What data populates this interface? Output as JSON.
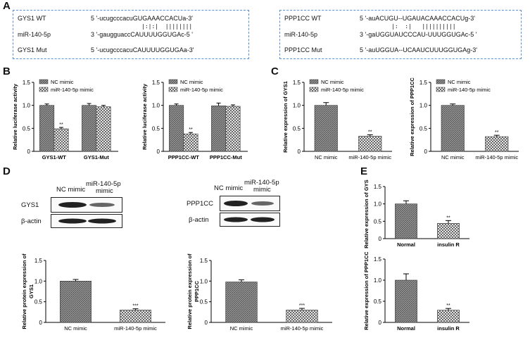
{
  "panels": {
    "A": "A",
    "B": "B",
    "C": "C",
    "D": "D",
    "E": "E"
  },
  "panelA": {
    "left": {
      "rows": [
        {
          "name": "GYS1 WT",
          "seq": "5 '-ucugcccacuGUGAAACCACUa-3'"
        },
        {
          "name": "",
          "seq": "|:|:|  ||||||||"
        },
        {
          "name": "miR-140-5p",
          "seq": "3 '-gaugguaccCAUUUUGGUGAc-5 '"
        },
        {
          "name": "GYS1 Mut",
          "seq": "5 '-ucugcccacuCAUUUUGGUGAa-3'"
        }
      ]
    },
    "right": {
      "rows": [
        {
          "name": "PPP1CC WT",
          "seq": "5 '-auACUGU--UGAUACAAACCACUg-3'"
        },
        {
          "name": "",
          "seq": "|:  :|   ||||||||||"
        },
        {
          "name": "miR-140-5p",
          "seq": "3 '-gaUGGUAUCCCAU-UUUGGUGAc-5 '"
        },
        {
          "name": "PPP1CC Mut",
          "seq": "5 '-auUGGUA--UCAAUCUUUGGUGAg-3'"
        }
      ]
    }
  },
  "legend": {
    "nc": "NC mimic",
    "mir": "miR-140-5p mimic"
  },
  "blots": {
    "left": {
      "cols": [
        "NC mimic",
        "miR-140-5p",
        "mimic"
      ],
      "rows": [
        "GYS1",
        "β-actin"
      ]
    },
    "right": {
      "cols": [
        "NC mimic",
        "miR-140-5p",
        "mimic"
      ],
      "rows": [
        "PPP1CC",
        "β-actin"
      ]
    }
  },
  "chart_data": [
    {
      "id": "B1",
      "type": "bar",
      "ylabel": "Relative luciferase activity",
      "ylim": [
        0,
        1.5
      ],
      "yticks": [
        0,
        0.5,
        1.0,
        1.5
      ],
      "categories": [
        "GYS1-WT",
        "GYS1-Mut"
      ],
      "series": [
        {
          "name": "NC mimic",
          "values": [
            1.0,
            1.0
          ]
        },
        {
          "name": "miR-140-5p mimic",
          "values": [
            0.49,
            0.97
          ]
        }
      ],
      "errors": [
        [
          0.03,
          0.04
        ],
        [
          0.03,
          0.03
        ]
      ],
      "annotations": [
        {
          "category": 0,
          "series": 1,
          "text": "**"
        }
      ]
    },
    {
      "id": "B2",
      "type": "bar",
      "ylabel": "Relative luciferase activity",
      "ylim": [
        0,
        1.5
      ],
      "yticks": [
        0,
        0.5,
        1.0,
        1.5
      ],
      "categories": [
        "PPP1CC-WT",
        "PPP1CC-Mut"
      ],
      "series": [
        {
          "name": "NC mimic",
          "values": [
            1.0,
            0.99
          ]
        },
        {
          "name": "miR-140-5p mimic",
          "values": [
            0.38,
            0.98
          ]
        }
      ],
      "errors": [
        [
          0.03,
          0.06
        ],
        [
          0.03,
          0.03
        ]
      ],
      "annotations": [
        {
          "category": 0,
          "series": 1,
          "text": "**"
        }
      ]
    },
    {
      "id": "C1",
      "type": "bar",
      "ylabel": "Relative expression of GYS1",
      "ylim": [
        0,
        1.5
      ],
      "yticks": [
        0,
        0.5,
        1.0,
        1.5
      ],
      "categories": [
        "NC mimic",
        "miR-140-5p mimic"
      ],
      "values": [
        1.0,
        0.33
      ],
      "errors": [
        0.06,
        0.03
      ],
      "annotations": [
        {
          "index": 1,
          "text": "**"
        }
      ]
    },
    {
      "id": "C2",
      "type": "bar",
      "ylabel": "Relative expression of PPP1CC",
      "ylim": [
        0,
        1.5
      ],
      "yticks": [
        0,
        0.5,
        1.0,
        1.5
      ],
      "categories": [
        "NC mimic",
        "miR-140-5p mimic"
      ],
      "values": [
        1.0,
        0.32
      ],
      "errors": [
        0.03,
        0.03
      ],
      "annotations": [
        {
          "index": 1,
          "text": "**"
        }
      ]
    },
    {
      "id": "D1",
      "type": "bar",
      "ylabel": "Relative protein expression of GYS1",
      "ylim": [
        0,
        1.5
      ],
      "yticks": [
        0,
        0.5,
        1.0,
        1.5
      ],
      "categories": [
        "NC mimic",
        "miR-140-5p mimic"
      ],
      "values": [
        1.0,
        0.3
      ],
      "errors": [
        0.04,
        0.03
      ],
      "annotations": [
        {
          "index": 1,
          "text": "***"
        }
      ]
    },
    {
      "id": "D2",
      "type": "bar",
      "ylabel": "Relative protein expression of PPP1CC",
      "ylim": [
        0,
        1.5
      ],
      "yticks": [
        0,
        0.5,
        1.0,
        1.5
      ],
      "categories": [
        "NC mimic",
        "miR-140-5p mimic"
      ],
      "values": [
        0.98,
        0.3
      ],
      "errors": [
        0.05,
        0.04
      ],
      "annotations": [
        {
          "index": 1,
          "text": "***"
        }
      ]
    },
    {
      "id": "E1",
      "type": "bar",
      "ylabel": "Relative expression of GYS1",
      "ylim": [
        0,
        1.5
      ],
      "yticks": [
        0,
        0.5,
        1.0,
        1.5
      ],
      "categories": [
        "Normal",
        "insulin R"
      ],
      "values": [
        1.0,
        0.44
      ],
      "errors": [
        0.09,
        0.08
      ],
      "annotations": [
        {
          "index": 1,
          "text": "**"
        }
      ]
    },
    {
      "id": "E2",
      "type": "bar",
      "ylabel": "Relative expression of PPP1CC",
      "ylim": [
        0,
        1.5
      ],
      "yticks": [
        0,
        0.5,
        1.0,
        1.5
      ],
      "categories": [
        "Normal",
        "insulin R"
      ],
      "values": [
        1.0,
        0.29
      ],
      "errors": [
        0.15,
        0.04
      ],
      "annotations": [
        {
          "index": 1,
          "text": "**"
        }
      ]
    }
  ]
}
